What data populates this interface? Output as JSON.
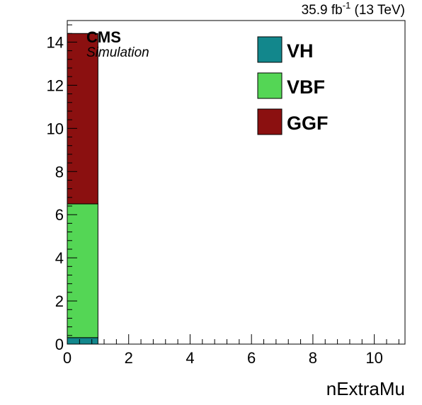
{
  "chart_data": {
    "type": "bar",
    "stacked": true,
    "xlabel": "nExtraMu",
    "ylabel": "",
    "xlim": [
      0,
      11
    ],
    "ylim": [
      0,
      15
    ],
    "xticks": [
      0,
      2,
      4,
      6,
      8,
      10
    ],
    "yticks": [
      0,
      2,
      4,
      6,
      8,
      10,
      12,
      14
    ],
    "bin_edges": [
      0,
      1
    ],
    "series": [
      {
        "name": "VH",
        "values": [
          0.3
        ],
        "color": "#12878c"
      },
      {
        "name": "VBF",
        "values": [
          6.2
        ],
        "color": "#54d655"
      },
      {
        "name": "GGF",
        "values": [
          7.9
        ],
        "color": "#8b1010"
      }
    ],
    "legend": {
      "placement": "top-right",
      "order": [
        "VH",
        "VBF",
        "GGF"
      ]
    },
    "grid": false,
    "lumi_label": "35.9 fb",
    "lumi_superscript": "-1",
    "energy_label": " (13 TeV)",
    "experiment_label": "CMS",
    "extra_label": "Simulation"
  }
}
